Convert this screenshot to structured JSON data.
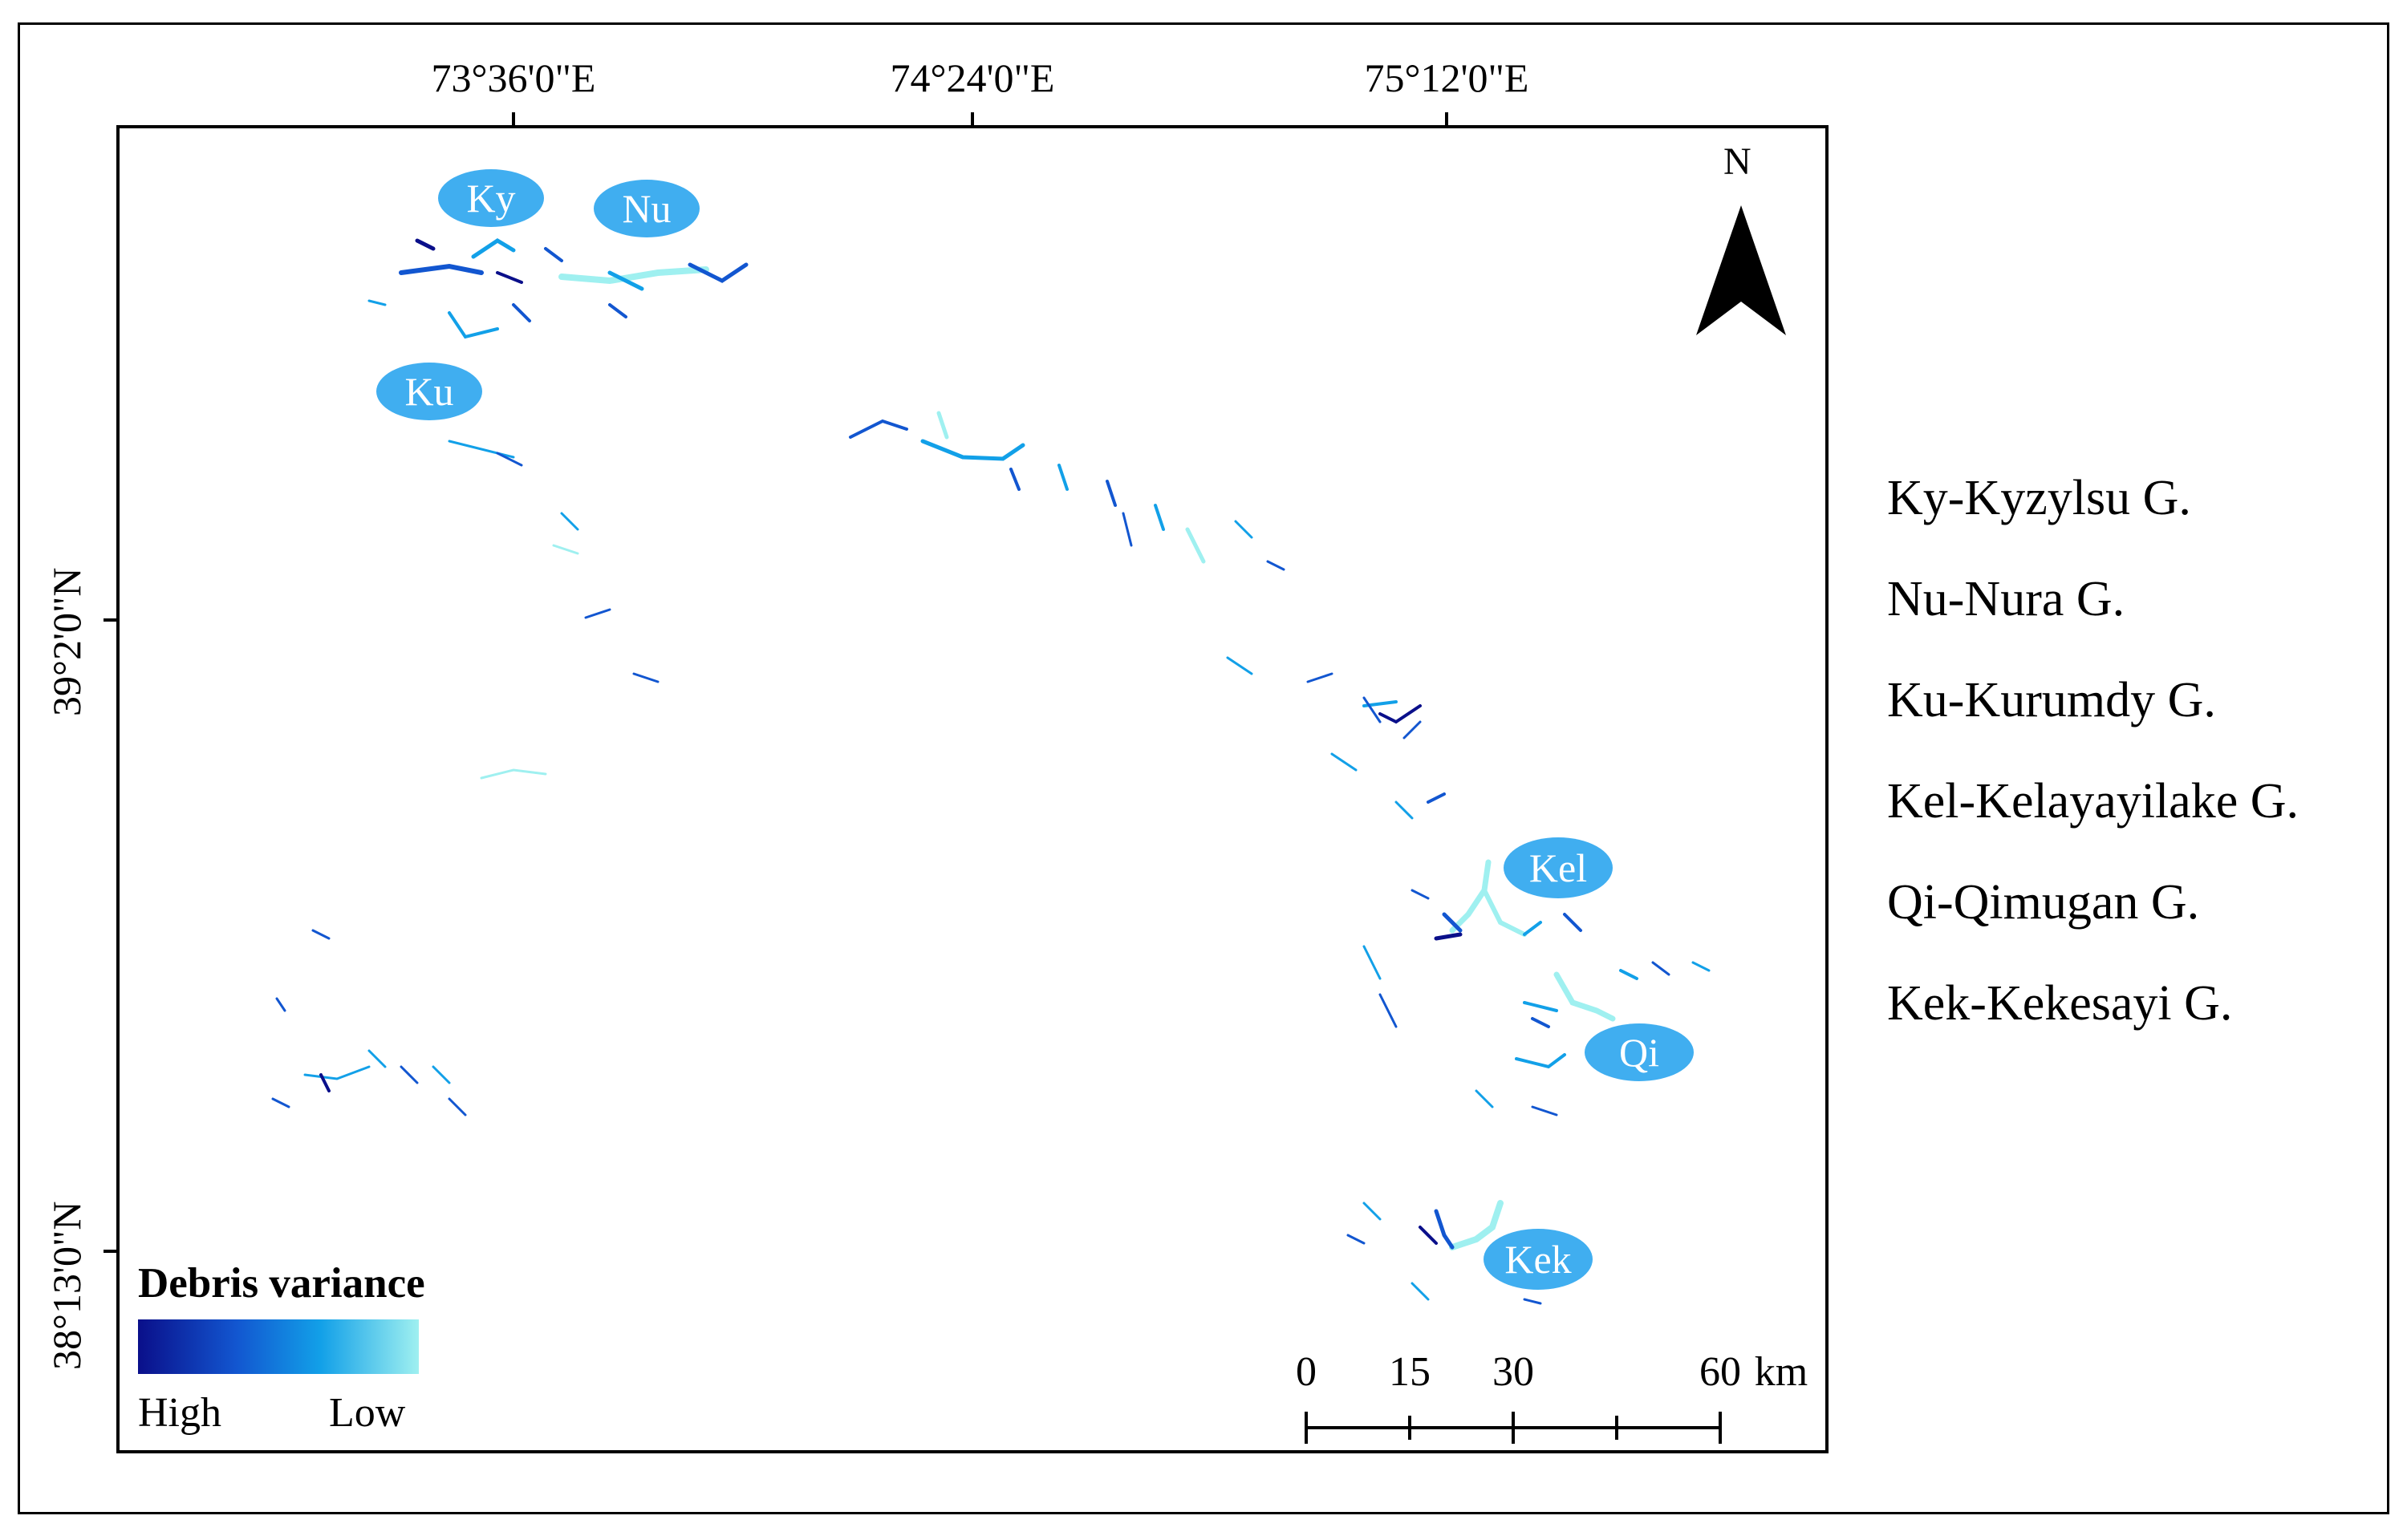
{
  "map": {
    "top_coordinates": [
      "73°36'0\"E",
      "74°24'0\"E",
      "75°12'0\"E"
    ],
    "left_coordinates": [
      "39°2'0\"N",
      "38°13'0\"N"
    ],
    "north_label": "N",
    "region_labels": [
      {
        "id": "ky",
        "text": "Ky"
      },
      {
        "id": "nu",
        "text": "Nu"
      },
      {
        "id": "ku",
        "text": "Ku"
      },
      {
        "id": "kel",
        "text": "Kel"
      },
      {
        "id": "qi",
        "text": "Qi"
      },
      {
        "id": "kek",
        "text": "Kek"
      }
    ],
    "colors": {
      "label_fill": "#40aef0",
      "high": "#0a0f8a",
      "mid": "#12a0e8",
      "low": "#9ff0f0"
    }
  },
  "legend": {
    "title": "Debris variance",
    "high": "High",
    "low": "Low"
  },
  "glacier_key": [
    "Ky-Kyzylsu G.",
    "Nu-Nura G.",
    "Ku-Kurumdy G.",
    "Kel-Kelayayilake G.",
    "Qi-Qimugan G.",
    "Kek-Kekesayi G."
  ],
  "scalebar": {
    "labels": [
      "0",
      "15",
      "30",
      "60"
    ],
    "unit": "km"
  }
}
